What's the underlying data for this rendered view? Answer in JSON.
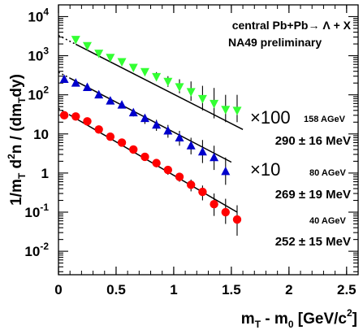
{
  "chart_data": {
    "type": "scatter",
    "title": "",
    "annotation": {
      "line1": "central Pb+Pb→ Λ + X",
      "line2": "NA49 preliminary"
    },
    "xlabel": "m_T - m_0 [GeV/c^2]",
    "ylabel": "1/m_T d^2n / (dm_T dy)",
    "xlim": [
      0,
      2.6
    ],
    "ylim_log10": [
      -2.6,
      4.3
    ],
    "y_scale": "log",
    "x_ticks": [
      {
        "v": 0,
        "label": "0"
      },
      {
        "v": 0.5,
        "label": "0.5"
      },
      {
        "v": 1,
        "label": "1"
      },
      {
        "v": 1.5,
        "label": "1.5"
      },
      {
        "v": 2,
        "label": "2"
      },
      {
        "v": 2.5,
        "label": "2.5"
      }
    ],
    "y_ticks": [
      {
        "e": -2,
        "label": "10",
        "sup": "-2"
      },
      {
        "e": -1,
        "label": "10",
        "sup": "-1"
      },
      {
        "e": 0,
        "label": "1",
        "sup": ""
      },
      {
        "e": 1,
        "label": "10",
        "sup": ""
      },
      {
        "e": 2,
        "label": "10",
        "sup": "2"
      },
      {
        "e": 3,
        "label": "10",
        "sup": "3"
      },
      {
        "e": 4,
        "label": "10",
        "sup": "4"
      }
    ],
    "series": [
      {
        "energy": "158 AGeV",
        "scale": "×100",
        "temperature": "290 ± 16 MeV",
        "marker": "triangle-down",
        "color": "#33ff33",
        "x": [
          0.15,
          0.25,
          0.35,
          0.45,
          0.55,
          0.65,
          0.75,
          0.85,
          0.95,
          1.05,
          1.15,
          1.25,
          1.35,
          1.45,
          1.55
        ],
        "y": [
          2600,
          1800,
          1150,
          900,
          700,
          500,
          390,
          290,
          220,
          160,
          120,
          80,
          60,
          42,
          40
        ],
        "err_hi": [
          2800,
          1950,
          1300,
          1000,
          800,
          600,
          470,
          380,
          300,
          250,
          220,
          170,
          150,
          100,
          100
        ],
        "err_lo": [
          2400,
          1650,
          1000,
          800,
          600,
          420,
          320,
          230,
          160,
          110,
          70,
          40,
          25,
          20,
          20
        ],
        "fit": {
          "x0": 0.0,
          "y0": 3300,
          "x1": 1.6,
          "y1": 13
        },
        "fit_dotted_to": 0.15
      },
      {
        "energy": "80 AGeV",
        "scale": "×10",
        "temperature": "269 ± 19 MeV",
        "marker": "triangle-up",
        "color": "#0000cc",
        "x": [
          0.05,
          0.15,
          0.25,
          0.35,
          0.45,
          0.55,
          0.65,
          0.75,
          0.85,
          0.95,
          1.05,
          1.15,
          1.25,
          1.35,
          1.45
        ],
        "y": [
          250,
          200,
          155,
          100,
          70,
          55,
          35,
          25,
          17,
          12,
          8,
          5,
          3.5,
          2.5,
          1.1
        ],
        "err_hi": [
          280,
          220,
          170,
          115,
          80,
          65,
          42,
          32,
          23,
          17,
          12,
          8,
          7,
          5,
          2.5
        ],
        "err_lo": [
          220,
          180,
          140,
          88,
          60,
          45,
          28,
          18,
          12,
          8,
          5,
          3,
          1.8,
          1.2,
          0.5
        ],
        "fit": {
          "x0": 0.0,
          "y0": 380,
          "x1": 1.5,
          "y1": 1.9
        },
        "fit_dotted_to": 0.1
      },
      {
        "energy": "40 AGeV",
        "scale": "",
        "temperature": "252 ± 15 MeV",
        "marker": "circle",
        "color": "#ff0000",
        "x": [
          0.05,
          0.15,
          0.25,
          0.35,
          0.45,
          0.55,
          0.65,
          0.75,
          0.85,
          0.95,
          1.05,
          1.15,
          1.25,
          1.35,
          1.45,
          1.55
        ],
        "y": [
          30,
          28,
          21,
          13,
          8.5,
          6,
          4,
          2.6,
          1.8,
          1.2,
          0.8,
          0.5,
          0.33,
          0.16,
          0.1,
          0.065
        ],
        "err_hi": [
          33,
          31,
          23,
          15,
          9.5,
          6.8,
          4.6,
          3.1,
          2.2,
          1.5,
          1.0,
          0.68,
          0.48,
          0.3,
          0.22,
          0.15
        ],
        "err_lo": [
          27,
          25,
          19,
          11,
          7.5,
          5.2,
          3.4,
          2.1,
          1.4,
          0.9,
          0.6,
          0.34,
          0.2,
          0.08,
          0.05,
          0.025
        ],
        "fit": {
          "x0": 0.0,
          "y0": 45,
          "x1": 1.55,
          "y1": 0.1
        },
        "fit_dotted_to": 0.1
      }
    ]
  }
}
